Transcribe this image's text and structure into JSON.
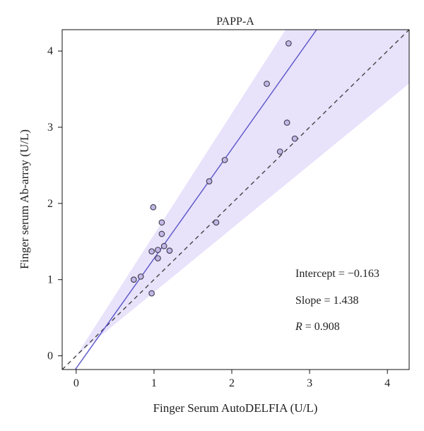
{
  "chart_data": {
    "type": "scatter",
    "title": "PAPP-A",
    "xlabel": "Finger Serum AutoDELFIA (U/L)",
    "ylabel": "Finger serum Ab-array (U/L)",
    "xlim": [
      -0.18,
      4.28
    ],
    "ylim": [
      -0.18,
      4.28
    ],
    "xticks": [
      "0",
      "1",
      "2",
      "3",
      "4"
    ],
    "yticks": [
      "0",
      "1",
      "2",
      "3",
      "4"
    ],
    "points": [
      {
        "x": 0.74,
        "y": 1.0
      },
      {
        "x": 0.83,
        "y": 1.04
      },
      {
        "x": 0.97,
        "y": 0.82
      },
      {
        "x": 0.97,
        "y": 1.37
      },
      {
        "x": 0.99,
        "y": 1.95
      },
      {
        "x": 1.05,
        "y": 1.28
      },
      {
        "x": 1.05,
        "y": 1.39
      },
      {
        "x": 1.1,
        "y": 1.75
      },
      {
        "x": 1.1,
        "y": 1.6
      },
      {
        "x": 1.13,
        "y": 1.44
      },
      {
        "x": 1.2,
        "y": 1.38
      },
      {
        "x": 1.71,
        "y": 2.29
      },
      {
        "x": 1.8,
        "y": 1.75
      },
      {
        "x": 1.91,
        "y": 2.57
      },
      {
        "x": 2.45,
        "y": 3.57
      },
      {
        "x": 2.62,
        "y": 2.68
      },
      {
        "x": 2.71,
        "y": 3.06
      },
      {
        "x": 2.73,
        "y": 4.1
      },
      {
        "x": 2.81,
        "y": 2.85
      }
    ],
    "fit_line": {
      "intercept": -0.163,
      "slope": 1.438
    },
    "identity_line": {
      "intercept": 0,
      "slope": 1
    },
    "confidence_band": {
      "upper_slope": 1.59,
      "lower_slope": 0.835,
      "intercept": 0
    },
    "annotations": {
      "intercept": "Intercept = −0.163",
      "slope": "Slope = 1.438",
      "r_symbol": "R",
      "r_value": " = 0.908"
    },
    "grid": false,
    "colors": {
      "band": "#e8e2fb",
      "fit_line": "#5a55c8",
      "identity_line": "#444444",
      "point_fill": "#c3b7e6",
      "point_stroke": "#3a3a4a",
      "axis": "#111111"
    }
  }
}
